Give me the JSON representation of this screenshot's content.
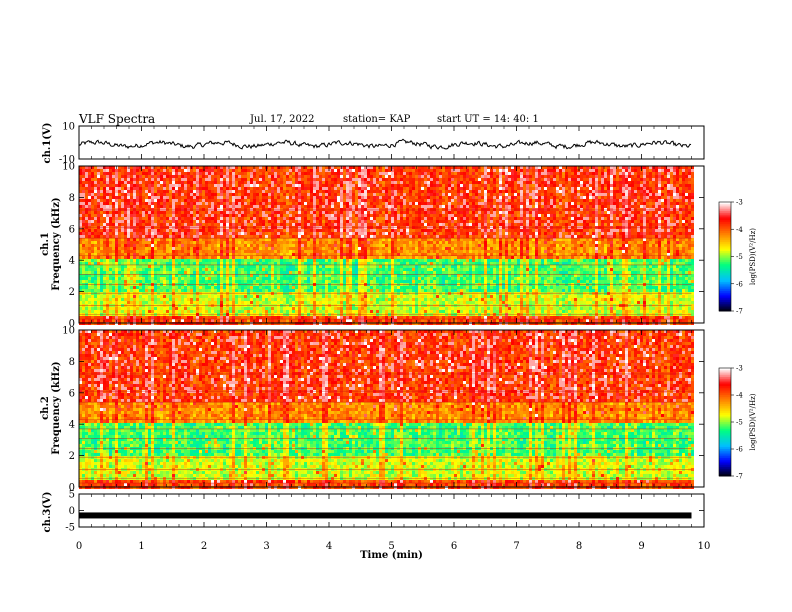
{
  "header": {
    "title": "VLF Spectra",
    "date": "Jul. 17, 2022",
    "station": "station= KAP",
    "start": "start  UT =   14: 40: 1"
  },
  "chart_data": [
    {
      "type": "line",
      "panel": "ch1-waveform",
      "ylabel": "ch.1(V)",
      "ylim": [
        -10,
        10
      ],
      "yticks": [
        10,
        -10
      ],
      "xlim": [
        0,
        10
      ],
      "description_units": "V"
    },
    {
      "type": "heatmap",
      "panel": "ch1-spectrogram",
      "ylabel": "ch.1 Frequency (kHz)",
      "ylim": [
        0,
        10
      ],
      "yticks": [
        0,
        2,
        4,
        6,
        8,
        10
      ],
      "xlim": [
        0,
        10
      ],
      "data_end_min": 9.8,
      "colorbar": {
        "label": "log(PSD)(V²/Hz)",
        "range": [
          -7,
          -3
        ],
        "ticks": [
          -3,
          -4,
          -5,
          -6,
          -7
        ]
      }
    },
    {
      "type": "heatmap",
      "panel": "ch2-spectrogram",
      "ylabel": "ch.2 Frequency (kHz)",
      "ylim": [
        0,
        10
      ],
      "yticks": [
        0,
        2,
        4,
        6,
        8,
        10
      ],
      "xlim": [
        0,
        10
      ],
      "data_end_min": 9.8,
      "colorbar": {
        "label": "log(PSD)(V²/Hz)",
        "range": [
          -7,
          -3
        ],
        "ticks": [
          -3,
          -4,
          -5,
          -6,
          -7
        ]
      }
    },
    {
      "type": "line",
      "panel": "ch3-waveform",
      "ylabel": "ch.3(V)",
      "ylim": [
        -5,
        5
      ],
      "yticks": [
        5,
        0,
        -5
      ],
      "xlim": [
        0,
        10
      ],
      "level": -1.5
    }
  ],
  "xaxis": {
    "label": "Time (min)",
    "ticks": [
      0,
      1,
      2,
      3,
      4,
      5,
      6,
      7,
      8,
      9,
      10
    ]
  },
  "colors": {
    "colormap": [
      "#000000",
      "#0000ff",
      "#00bfff",
      "#00ff80",
      "#ffff00",
      "#ff8000",
      "#ff0000",
      "#ffffff"
    ]
  }
}
